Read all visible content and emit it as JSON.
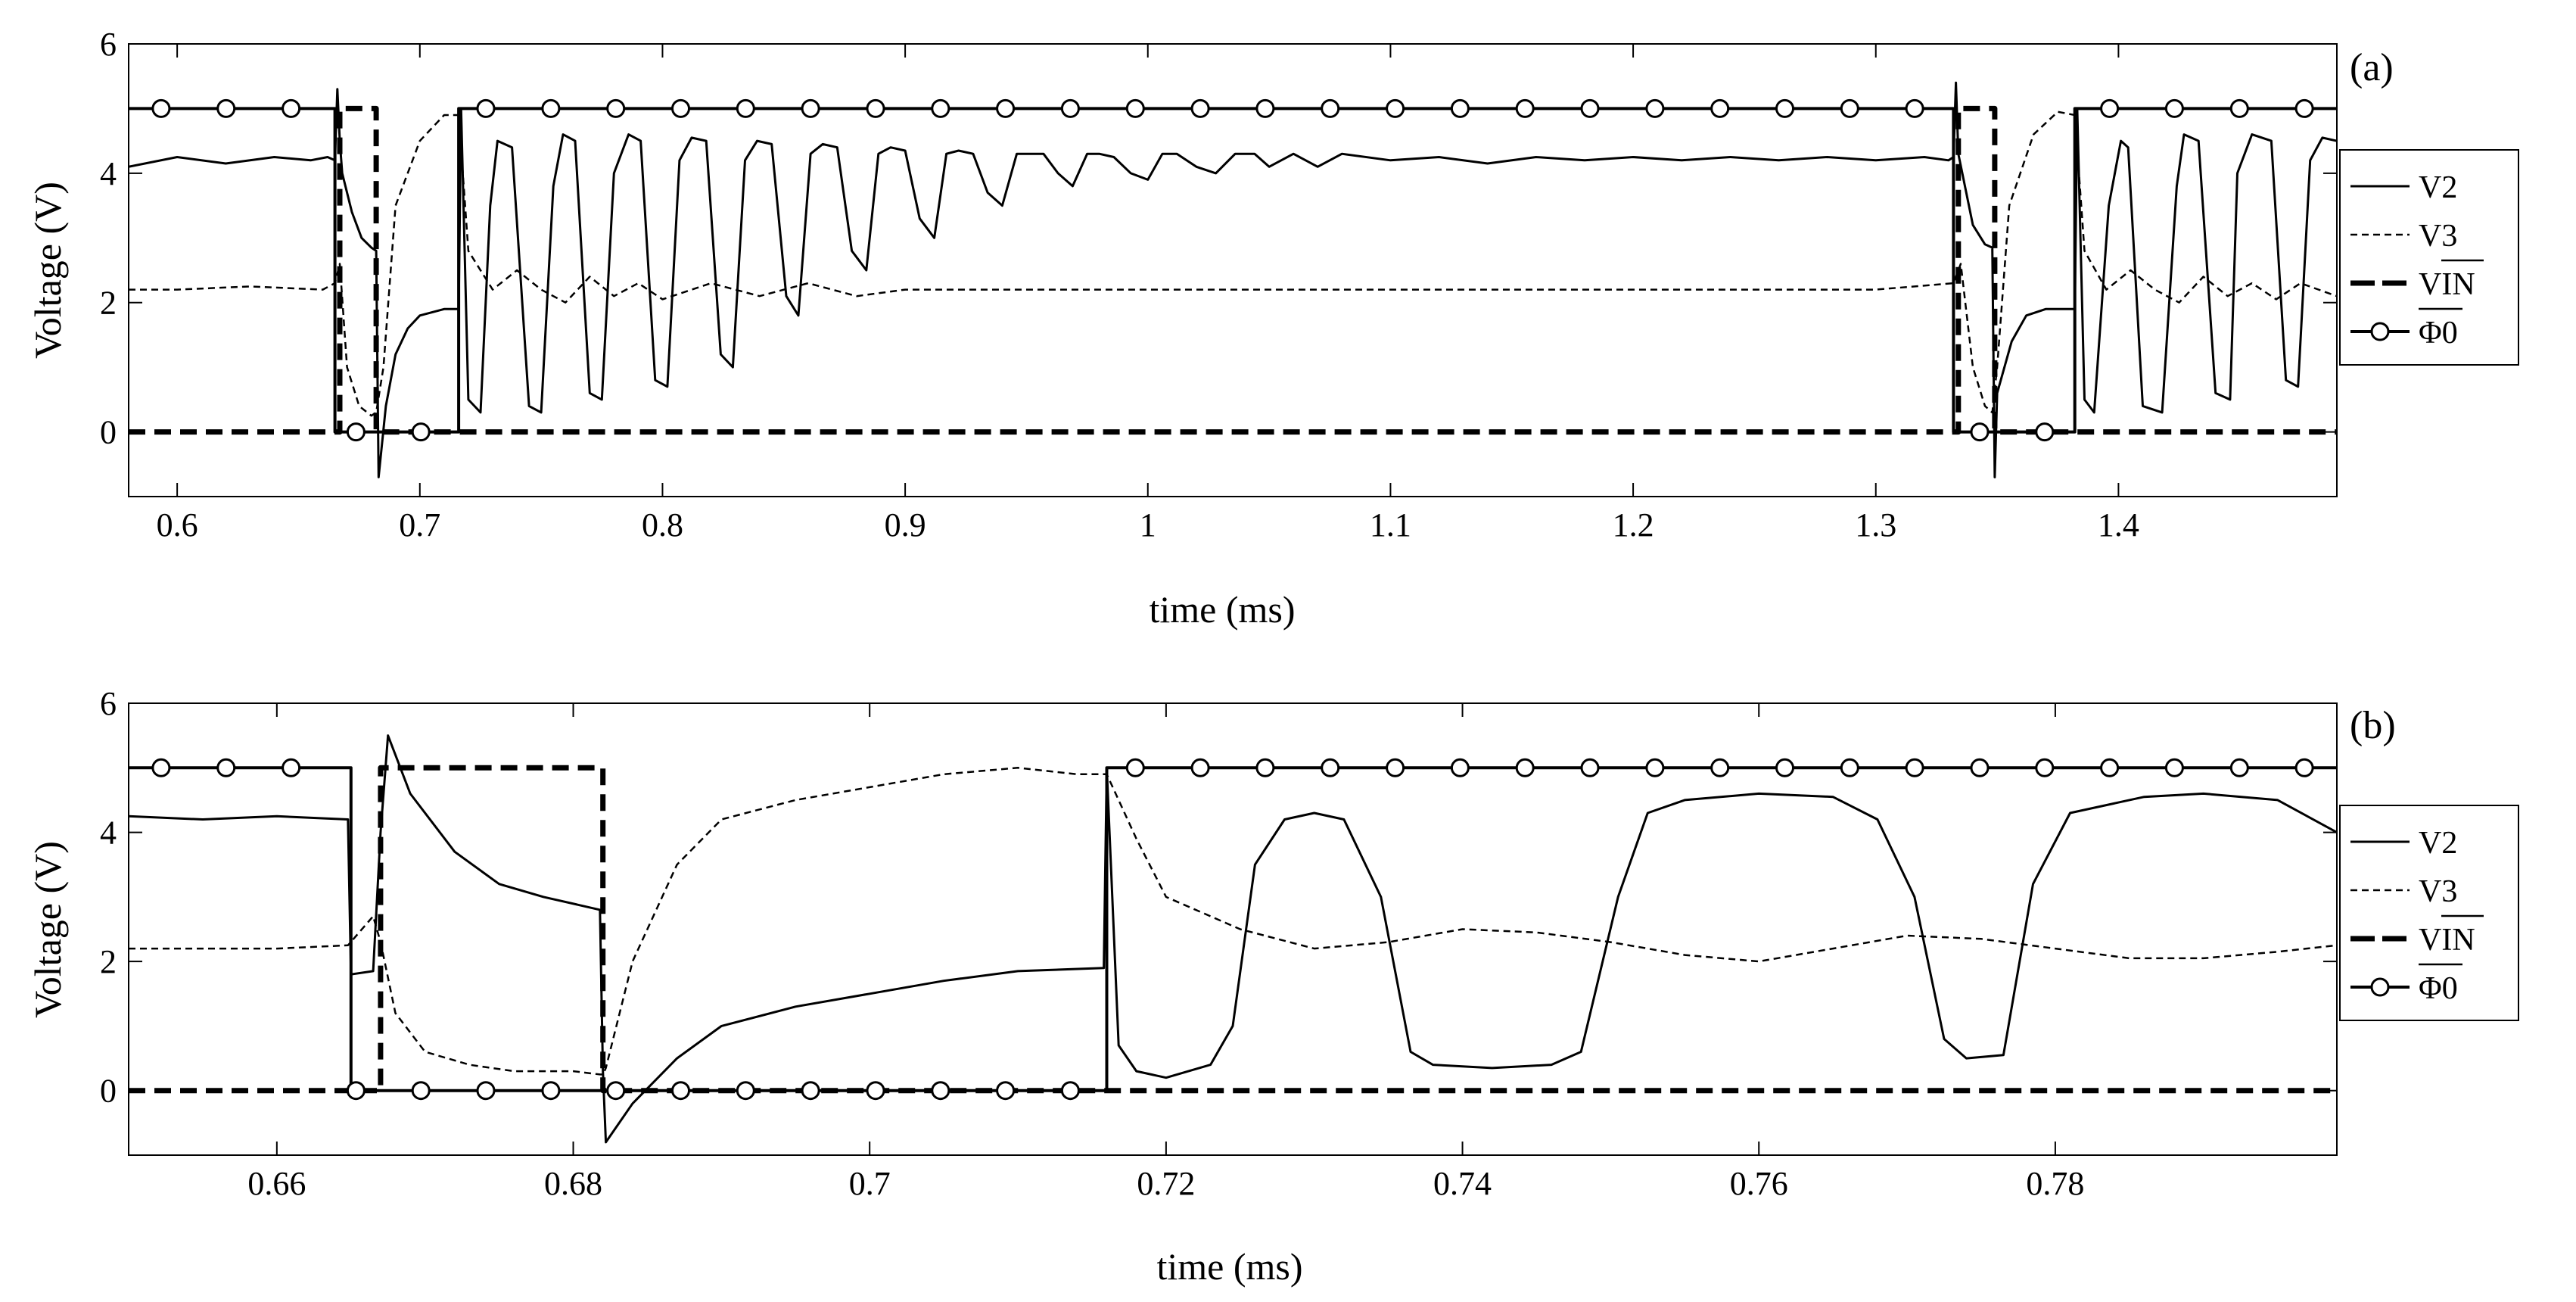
{
  "chart_data": [
    {
      "type": "line",
      "panel_label": "(a)",
      "xlabel": "time (ms)",
      "ylabel": "Voltage (V)",
      "xlim": [
        0.58,
        1.49
      ],
      "ylim": [
        -1,
        6
      ],
      "xticks": [
        0.6,
        0.7,
        0.8,
        0.9,
        1,
        1.1,
        1.2,
        1.3,
        1.4
      ],
      "xtick_labels": [
        "0.6",
        "0.7",
        "0.8",
        "0.9",
        "1",
        "1.1",
        "1.2",
        "1.3",
        "1.4"
      ],
      "yticks": [
        0,
        2,
        4,
        6
      ],
      "ytick_labels": [
        "0",
        "2",
        "4",
        "6"
      ],
      "legend": [
        "V2",
        "V3",
        "VIN",
        "Φ0"
      ],
      "legend_position": "outside-right",
      "series": [
        {
          "name": "V2",
          "style": "solid",
          "x": [
            0.58,
            0.6,
            0.62,
            0.64,
            0.655,
            0.662,
            0.665,
            0.666,
            0.667,
            0.668,
            0.672,
            0.676,
            0.68,
            0.682,
            0.683,
            0.686,
            0.69,
            0.695,
            0.7,
            0.71,
            0.716,
            0.717,
            0.72,
            0.725,
            0.729,
            0.732,
            0.738,
            0.745,
            0.75,
            0.755,
            0.759,
            0.764,
            0.77,
            0.775,
            0.78,
            0.786,
            0.791,
            0.797,
            0.802,
            0.807,
            0.812,
            0.818,
            0.824,
            0.829,
            0.834,
            0.839,
            0.845,
            0.851,
            0.856,
            0.861,
            0.866,
            0.872,
            0.878,
            0.884,
            0.889,
            0.894,
            0.9,
            0.906,
            0.912,
            0.917,
            0.922,
            0.928,
            0.934,
            0.94,
            0.946,
            0.951,
            0.957,
            0.963,
            0.969,
            0.975,
            0.98,
            0.986,
            0.993,
            1.0,
            1.006,
            1.012,
            1.02,
            1.028,
            1.036,
            1.044,
            1.05,
            1.06,
            1.07,
            1.08,
            1.1,
            1.12,
            1.14,
            1.16,
            1.18,
            1.2,
            1.22,
            1.24,
            1.26,
            1.28,
            1.3,
            1.32,
            1.33,
            1.332,
            1.333,
            1.334,
            1.34,
            1.345,
            1.348,
            1.349,
            1.35,
            1.356,
            1.362,
            1.37,
            1.378,
            1.382,
            1.383,
            1.386,
            1.39,
            1.396,
            1.401,
            1.404,
            1.41,
            1.418,
            1.424,
            1.427,
            1.433,
            1.44,
            1.446,
            1.449,
            1.455,
            1.463,
            1.469,
            1.474,
            1.479,
            1.484,
            1.49
          ],
          "y": [
            4.1,
            4.25,
            4.15,
            4.25,
            4.2,
            4.25,
            4.2,
            5.3,
            4.5,
            4.0,
            3.4,
            3.0,
            2.85,
            2.8,
            -0.7,
            0.4,
            1.2,
            1.6,
            1.8,
            1.9,
            1.9,
            5.0,
            0.5,
            0.3,
            3.5,
            4.5,
            4.4,
            0.4,
            0.3,
            3.8,
            4.6,
            4.5,
            0.6,
            0.5,
            4.0,
            4.6,
            4.5,
            0.8,
            0.7,
            4.2,
            4.55,
            4.5,
            1.2,
            1.0,
            4.2,
            4.5,
            4.45,
            2.1,
            1.8,
            4.3,
            4.45,
            4.4,
            2.8,
            2.5,
            4.3,
            4.4,
            4.35,
            3.3,
            3.0,
            4.3,
            4.35,
            4.3,
            3.7,
            3.5,
            4.3,
            4.3,
            4.3,
            4.0,
            3.8,
            4.3,
            4.3,
            4.25,
            4.0,
            3.9,
            4.3,
            4.3,
            4.1,
            4.0,
            4.3,
            4.3,
            4.1,
            4.3,
            4.1,
            4.3,
            4.2,
            4.25,
            4.15,
            4.25,
            4.2,
            4.25,
            4.2,
            4.25,
            4.2,
            4.25,
            4.2,
            4.25,
            4.2,
            4.25,
            5.4,
            4.3,
            3.2,
            2.9,
            2.85,
            -0.7,
            0.6,
            1.4,
            1.8,
            1.9,
            1.9,
            1.9,
            5.0,
            0.5,
            0.3,
            3.5,
            4.5,
            4.4,
            0.4,
            0.3,
            3.8,
            4.6,
            4.5,
            0.6,
            0.5,
            4.0,
            4.6,
            4.5,
            0.8,
            0.7,
            4.2,
            4.55,
            4.5
          ]
        },
        {
          "name": "V3",
          "style": "dashed",
          "x": [
            0.58,
            0.6,
            0.63,
            0.66,
            0.665,
            0.667,
            0.67,
            0.675,
            0.68,
            0.682,
            0.685,
            0.69,
            0.7,
            0.71,
            0.716,
            0.72,
            0.73,
            0.74,
            0.75,
            0.76,
            0.77,
            0.78,
            0.79,
            0.8,
            0.82,
            0.84,
            0.86,
            0.88,
            0.9,
            0.95,
            1.0,
            1.05,
            1.1,
            1.15,
            1.2,
            1.25,
            1.3,
            1.332,
            1.335,
            1.34,
            1.345,
            1.348,
            1.35,
            1.355,
            1.365,
            1.375,
            1.382,
            1.386,
            1.395,
            1.405,
            1.415,
            1.425,
            1.435,
            1.445,
            1.455,
            1.465,
            1.475,
            1.49
          ],
          "y": [
            2.2,
            2.2,
            2.25,
            2.2,
            2.3,
            2.6,
            1.0,
            0.4,
            0.25,
            0.3,
            1.0,
            3.5,
            4.5,
            4.9,
            4.9,
            2.8,
            2.2,
            2.5,
            2.2,
            2.0,
            2.4,
            2.1,
            2.3,
            2.05,
            2.3,
            2.1,
            2.3,
            2.1,
            2.2,
            2.2,
            2.2,
            2.2,
            2.2,
            2.2,
            2.2,
            2.2,
            2.2,
            2.3,
            2.6,
            1.0,
            0.4,
            0.3,
            1.0,
            3.5,
            4.6,
            4.95,
            4.9,
            2.8,
            2.2,
            2.5,
            2.2,
            2.0,
            2.4,
            2.1,
            2.3,
            2.05,
            2.3,
            2.1
          ]
        },
        {
          "name": "VIN",
          "style": "thick-dashed",
          "x": [
            0.58,
            0.667,
            0.667,
            0.682,
            0.682,
            1.334,
            1.334,
            1.349,
            1.349,
            1.49
          ],
          "y": [
            0,
            0,
            5,
            5,
            0,
            0,
            5,
            5,
            0,
            0
          ]
        },
        {
          "name": "Φ0",
          "style": "solid-circle",
          "x": [
            0.58,
            0.665,
            0.665,
            0.716,
            0.716,
            1.332,
            1.332,
            1.382,
            1.382,
            1.49
          ],
          "y": [
            5,
            5,
            0,
            0,
            5,
            5,
            0,
            0,
            5,
            5
          ]
        }
      ]
    },
    {
      "type": "line",
      "panel_label": "(b)",
      "xlabel": "time (ms)",
      "ylabel": "Voltage (V)",
      "xlim": [
        0.65,
        0.799
      ],
      "ylim": [
        -1,
        6
      ],
      "xticks": [
        0.66,
        0.68,
        0.7,
        0.72,
        0.74,
        0.76,
        0.78
      ],
      "xtick_labels": [
        "0.66",
        "0.68",
        "0.7",
        "0.72",
        "0.74",
        "0.76",
        "0.78"
      ],
      "yticks": [
        0,
        2,
        4,
        6
      ],
      "ytick_labels": [
        "0",
        "2",
        "4",
        "6"
      ],
      "legend": [
        "V2",
        "V3",
        "VIN",
        "Φ0"
      ],
      "legend_position": "outside-right",
      "series": [
        {
          "name": "V2",
          "style": "solid",
          "x": [
            0.65,
            0.655,
            0.66,
            0.6648,
            0.665,
            0.6665,
            0.667,
            0.6675,
            0.669,
            0.672,
            0.675,
            0.678,
            0.6818,
            0.682,
            0.6822,
            0.684,
            0.687,
            0.69,
            0.695,
            0.7,
            0.705,
            0.71,
            0.7158,
            0.716,
            0.7168,
            0.718,
            0.72,
            0.723,
            0.7245,
            0.726,
            0.728,
            0.73,
            0.732,
            0.7345,
            0.7365,
            0.738,
            0.742,
            0.746,
            0.748,
            0.7505,
            0.7525,
            0.755,
            0.76,
            0.765,
            0.768,
            0.7705,
            0.7725,
            0.774,
            0.7765,
            0.7785,
            0.781,
            0.786,
            0.79,
            0.795,
            0.799
          ],
          "y": [
            4.25,
            4.2,
            4.25,
            4.2,
            1.8,
            1.85,
            4.0,
            5.5,
            4.6,
            3.7,
            3.2,
            3.0,
            2.8,
            0.3,
            -0.8,
            -0.2,
            0.5,
            1.0,
            1.3,
            1.5,
            1.7,
            1.85,
            1.9,
            5.0,
            0.7,
            0.3,
            0.2,
            0.4,
            1.0,
            3.5,
            4.2,
            4.3,
            4.2,
            3.0,
            0.6,
            0.4,
            0.35,
            0.4,
            0.6,
            3.0,
            4.3,
            4.5,
            4.6,
            4.55,
            4.2,
            3.0,
            0.8,
            0.5,
            0.55,
            3.2,
            4.3,
            4.55,
            4.6,
            4.5,
            4.0
          ]
        },
        {
          "name": "V3",
          "style": "dashed",
          "x": [
            0.65,
            0.66,
            0.6648,
            0.6665,
            0.667,
            0.668,
            0.67,
            0.673,
            0.676,
            0.68,
            0.6818,
            0.682,
            0.6822,
            0.684,
            0.687,
            0.69,
            0.695,
            0.7,
            0.705,
            0.71,
            0.714,
            0.716,
            0.718,
            0.72,
            0.725,
            0.73,
            0.735,
            0.74,
            0.745,
            0.75,
            0.755,
            0.76,
            0.765,
            0.77,
            0.775,
            0.78,
            0.785,
            0.79,
            0.795,
            0.799
          ],
          "y": [
            2.2,
            2.2,
            2.25,
            2.7,
            2.3,
            1.2,
            0.6,
            0.4,
            0.3,
            0.3,
            0.25,
            0.25,
            0.35,
            2.0,
            3.5,
            4.2,
            4.5,
            4.7,
            4.9,
            5.0,
            4.9,
            4.9,
            3.9,
            3.0,
            2.5,
            2.2,
            2.3,
            2.5,
            2.45,
            2.3,
            2.1,
            2.0,
            2.2,
            2.4,
            2.35,
            2.2,
            2.05,
            2.05,
            2.15,
            2.25
          ]
        },
        {
          "name": "VIN",
          "style": "thick-dashed",
          "x": [
            0.65,
            0.667,
            0.667,
            0.682,
            0.682,
            0.799
          ],
          "y": [
            0,
            0,
            5,
            5,
            0,
            0
          ]
        },
        {
          "name": "Φ0",
          "style": "solid-circle",
          "x": [
            0.65,
            0.665,
            0.665,
            0.716,
            0.716,
            0.799
          ],
          "y": [
            5,
            5,
            0,
            0,
            5,
            5
          ]
        }
      ]
    }
  ]
}
